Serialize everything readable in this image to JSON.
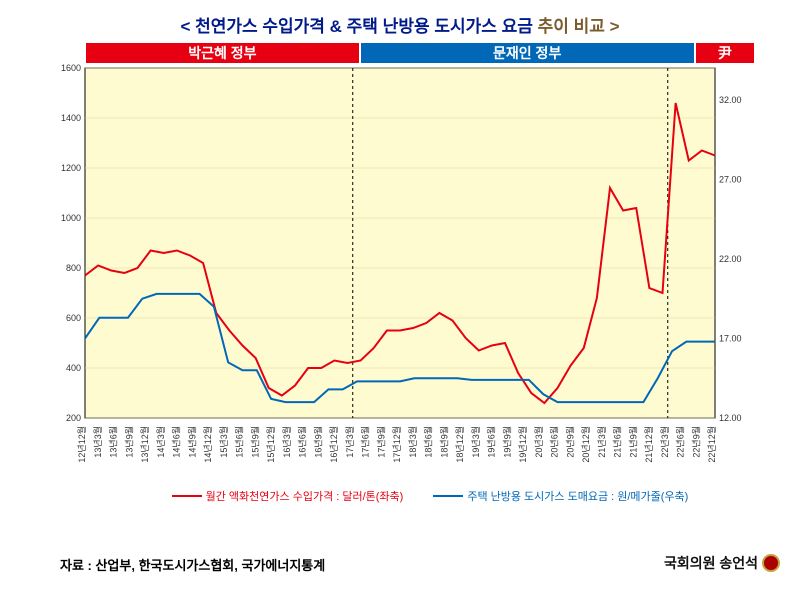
{
  "title_main": "< 천연가스 수입가격 & 주택 난방용 도시가스 요금 ",
  "title_sub": "추이 비교 >",
  "governments": [
    {
      "label": "박근혜 정부",
      "color": "#e60012",
      "widthPct": 41
    },
    {
      "label": "문재인 정부",
      "color": "#0068b7",
      "widthPct": 50
    },
    {
      "label": "尹",
      "color": "#e60012",
      "widthPct": 9
    }
  ],
  "chart": {
    "type": "line",
    "plot_bg": "#fffbd0",
    "border_color": "#000000",
    "grid_color": "#d9d6a8",
    "divider_color": "#000000",
    "divider_dash": "3,3",
    "left_axis": {
      "min": 200,
      "max": 1600,
      "ticks": [
        200,
        400,
        600,
        800,
        1000,
        1200,
        1400,
        1600
      ],
      "fontsize": 9
    },
    "right_axis": {
      "min": 12,
      "max": 34,
      "ticks": [
        12.0,
        17.0,
        22.0,
        27.0,
        32.0
      ],
      "fontsize": 9
    },
    "x_labels": [
      "12년12월",
      "13년3월",
      "13년6월",
      "13년9월",
      "13년12월",
      "14년3월",
      "14년6월",
      "14년9월",
      "14년12월",
      "15년3월",
      "15년6월",
      "15년9월",
      "15년12월",
      "16년3월",
      "16년6월",
      "16년9월",
      "16년12월",
      "17년3월",
      "17년6월",
      "17년9월",
      "17년12월",
      "18년3월",
      "18년6월",
      "18년9월",
      "18년12월",
      "19년3월",
      "19년6월",
      "19년9월",
      "19년12월",
      "20년3월",
      "20년6월",
      "20년9월",
      "20년12월",
      "21년3월",
      "21년6월",
      "21년9월",
      "21년12월",
      "22년3월",
      "22년6월",
      "22년9월",
      "22년12월"
    ],
    "dividers_at_idx": [
      17,
      37
    ],
    "series": [
      {
        "name": "red",
        "color": "#e60012",
        "width": 2,
        "axis": "left",
        "legend": "월간 액화천연가스 수입가격 : 달러/톤(좌축)",
        "values": [
          770,
          810,
          790,
          780,
          800,
          870,
          860,
          870,
          850,
          820,
          620,
          550,
          490,
          440,
          320,
          290,
          330,
          400,
          400,
          430,
          420,
          430,
          480,
          550,
          550,
          560,
          580,
          620,
          590,
          520,
          470,
          490,
          500,
          380,
          300,
          260,
          320,
          410,
          480,
          680,
          1120,
          1030,
          1040,
          720,
          700,
          1460,
          1230,
          1270,
          1250
        ]
      },
      {
        "name": "blue",
        "color": "#0068b7",
        "width": 2,
        "axis": "right",
        "legend": "주택 난방용 도시가스 도매요금 : 원/메가줄(우축)",
        "values": [
          17.0,
          18.3,
          18.3,
          18.3,
          19.5,
          19.8,
          19.8,
          19.8,
          19.8,
          19.0,
          15.5,
          15.0,
          15.0,
          13.2,
          13.0,
          13.0,
          13.0,
          13.8,
          13.8,
          14.3,
          14.3,
          14.3,
          14.3,
          14.5,
          14.5,
          14.5,
          14.5,
          14.4,
          14.4,
          14.4,
          14.4,
          14.4,
          13.5,
          13.0,
          13.0,
          13.0,
          13.0,
          13.0,
          13.0,
          13.0,
          14.5,
          16.2,
          16.8,
          16.8,
          16.8
        ]
      }
    ]
  },
  "source": "자료 : 산업부, 한국도시가스협회, 국가에너지통계",
  "author": "국회의원 송언석"
}
